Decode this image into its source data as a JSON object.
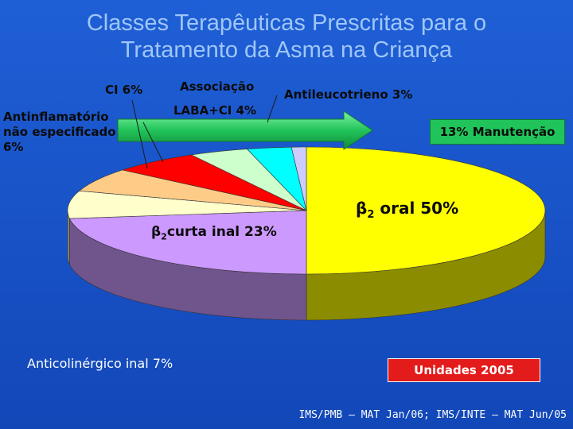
{
  "title": {
    "line1": "Classes Terapêuticas Prescritas  para o",
    "line2": "Tratamento da Asma na Criança"
  },
  "chart_data": {
    "type": "pie",
    "slices": [
      {
        "label": "β2 oral 50%",
        "value": 50,
        "color": "#ffff00"
      },
      {
        "label": "β2curta inal 23%",
        "value": 23,
        "color": "#cc99ff"
      },
      {
        "label": "Anticolinérgico inal 7%",
        "value": 7,
        "color": "#ffffcc"
      },
      {
        "label": "Antinflamatório não especificado 6%",
        "value": 6,
        "color": "#ffcc88"
      },
      {
        "label": "CI 6%",
        "value": 6,
        "color": "#ff0000"
      },
      {
        "label": "Associação LABA+CI 4%",
        "value": 4,
        "color": "#ccffcc"
      },
      {
        "label": "Antileucotrieno 3%",
        "value": 3,
        "color": "#00ffff"
      },
      {
        "label": "",
        "value": 1,
        "color": "#ccccff"
      }
    ]
  },
  "labels": {
    "ci": "CI 6%",
    "assoc1": "Associação",
    "assoc2": "LABA+CI 4%",
    "antileuco": "Antileucotrieno 3%",
    "antinfl1": "Antinflamatório",
    "antinfl2": "não especificado",
    "antinfl3": "6%",
    "b2oral_sym": "β",
    "b2oral_sub": "2",
    "b2oral_rest": " oral 50%",
    "b2curta_sym": "β",
    "b2curta_sub": "2",
    "b2curta_rest": "curta inal 23%",
    "anticol": "Anticolinérgico inal 7%",
    "manut": "13% Manutenção",
    "units": "Unidades 2005",
    "source": "IMS/PMB – MAT Jan/06; IMS/INTE – MAT Jun/05"
  },
  "colors": {
    "background": "#1f5fd6",
    "title": "#9fc6f7",
    "arrow": "#21c45a",
    "units_box": "#e31b1b"
  }
}
